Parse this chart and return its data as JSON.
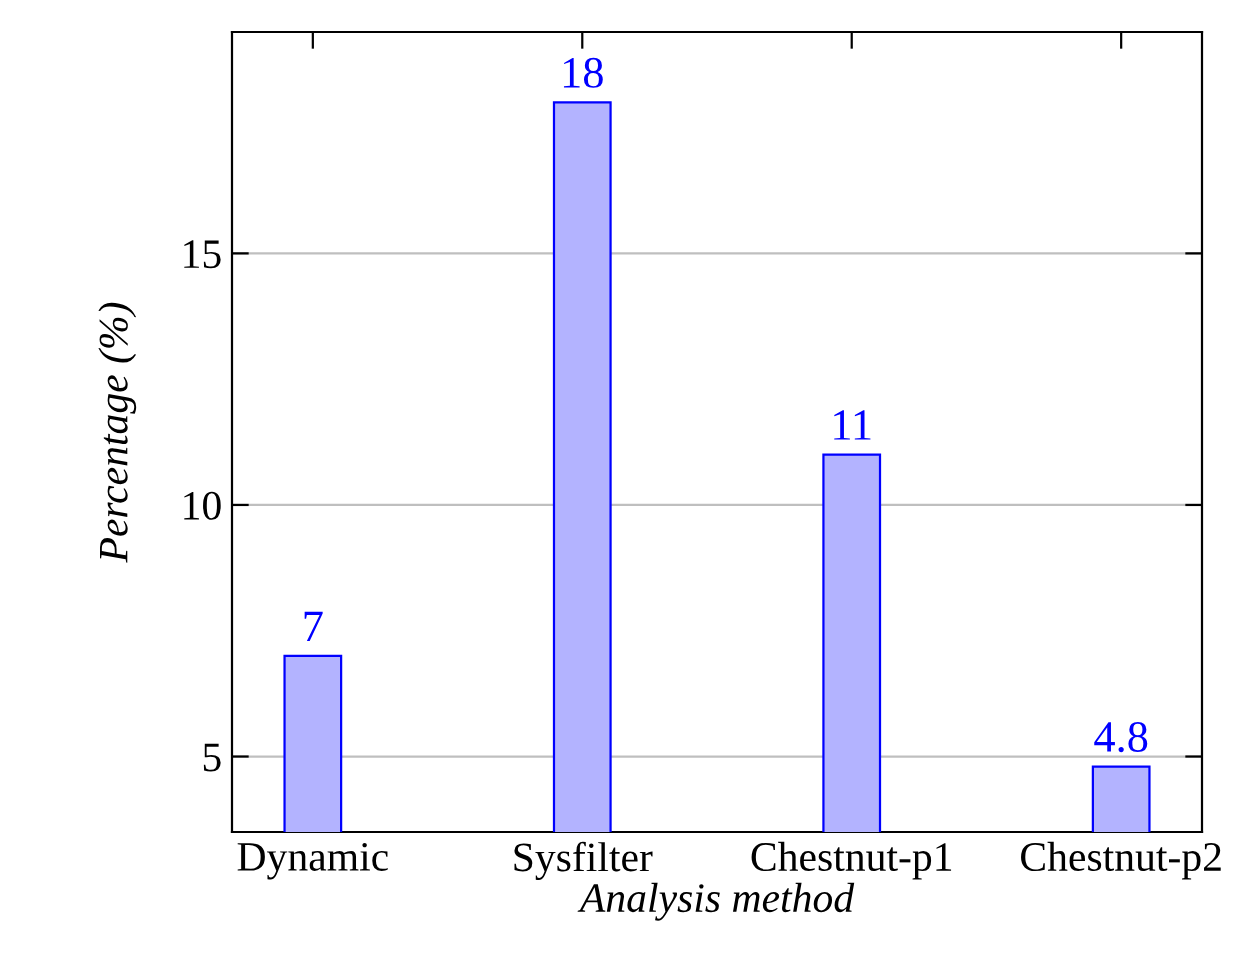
{
  "chart_data": {
    "type": "bar",
    "xlabel": "Analysis method",
    "ylabel": "Percentage (%)",
    "categories": [
      "Dynamic",
      "Sysfilter",
      "Chestnut-p1",
      "Chestnut-p2"
    ],
    "series": [
      {
        "color": "#b3b3ff",
        "values": [
          7,
          18,
          11,
          4.8
        ]
      }
    ],
    "ylim": [
      3.5,
      19.4
    ],
    "yticks": [
      5,
      10,
      15
    ],
    "grid": "y",
    "data_labels": true
  }
}
